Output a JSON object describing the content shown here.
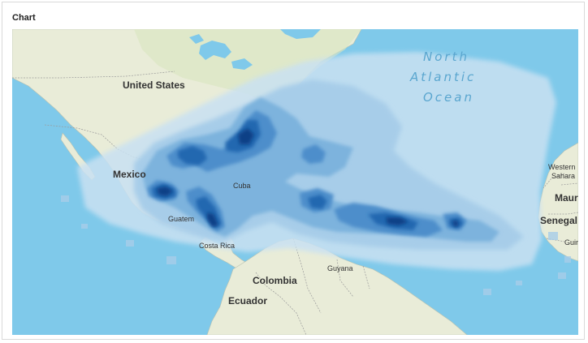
{
  "panel": {
    "title": "Chart"
  },
  "map": {
    "colors": {
      "ocean": "#7fc9ea",
      "land": "#e9ecd8",
      "land_green": "#d8e6c0",
      "border": "#9a9a9a",
      "density_1": "#c9e1f2",
      "density_2": "#a7cde9",
      "density_3": "#7db3dd",
      "density_4": "#4d8ecb",
      "density_5": "#2467b0",
      "density_6": "#0c3f86"
    },
    "labels": {
      "united_states": "United States",
      "mexico": "Mexico",
      "cuba": "Cuba",
      "guatemala": "Guatem",
      "costa_rica": "Costa Rica",
      "guyana": "Guyana",
      "colombia": "Colombia",
      "ecuador": "Ecuador",
      "western_sahara_1": "Western",
      "western_sahara_2": "Sahara",
      "mauritania": "Maur",
      "senegal": "Senegal",
      "guinea": "Guir",
      "north_atlantic_1": "North",
      "north_atlantic_2": "Atlantic",
      "north_atlantic_3": "Ocean"
    }
  }
}
